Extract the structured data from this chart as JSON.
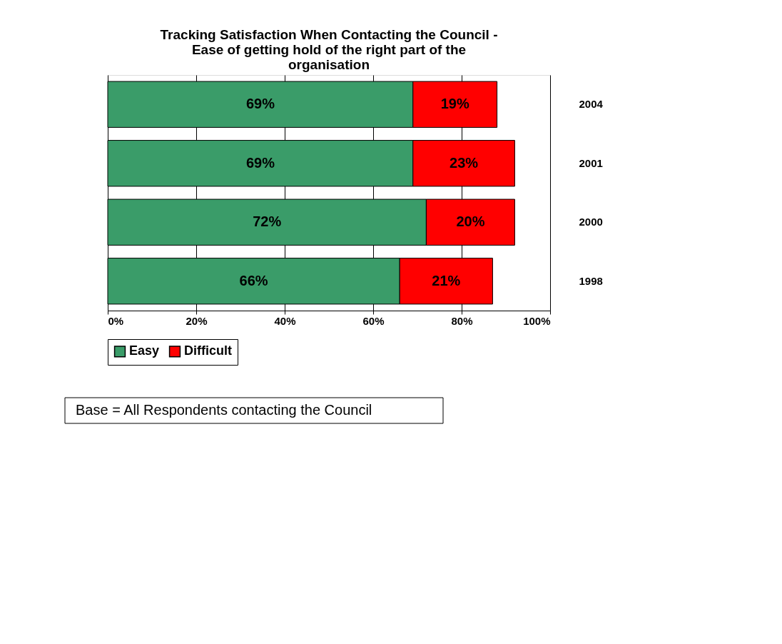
{
  "chart_data": {
    "type": "bar",
    "orientation": "horizontal",
    "stacked": true,
    "title": "Tracking Satisfaction When Contacting the Council - Ease of getting hold of the right part of the organisation",
    "categories": [
      "2004",
      "2001",
      "2000",
      "1998"
    ],
    "series": [
      {
        "name": "Easy",
        "color": "#3a9c69",
        "values": [
          69,
          69,
          72,
          66
        ],
        "value_labels": [
          "69%",
          "69%",
          "72%",
          "66%"
        ]
      },
      {
        "name": "Difficult",
        "color": "#ff0000",
        "values": [
          19,
          23,
          20,
          21
        ],
        "value_labels": [
          "19%",
          "23%",
          "20%",
          "21%"
        ]
      }
    ],
    "xlim": [
      0,
      100
    ],
    "xticks": [
      {
        "value": 0,
        "label": "0%"
      },
      {
        "value": 20,
        "label": "20%"
      },
      {
        "value": 40,
        "label": "40%"
      },
      {
        "value": 60,
        "label": "60%"
      },
      {
        "value": 80,
        "label": "80%"
      },
      {
        "value": 100,
        "label": "100%"
      }
    ],
    "grid": "x",
    "legend": "bottom",
    "annotations": [
      "Base = All Respondents contacting the Council"
    ]
  }
}
